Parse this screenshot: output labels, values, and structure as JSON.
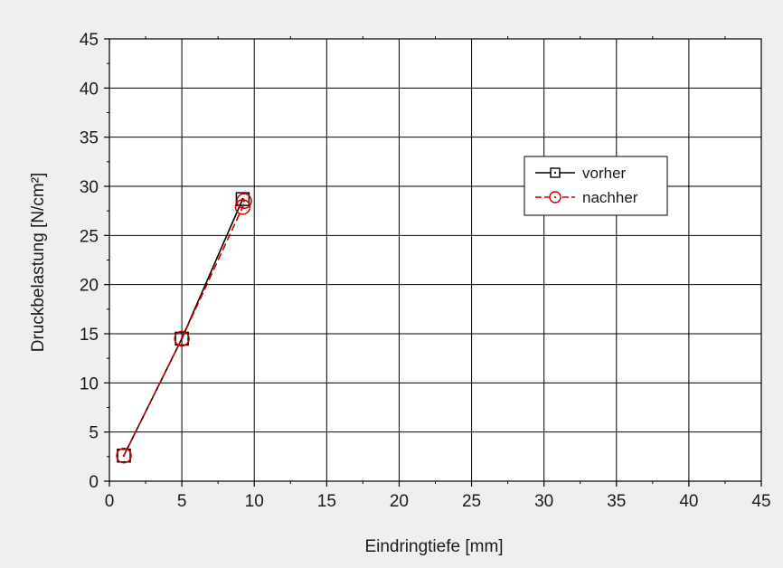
{
  "chart_data": {
    "type": "line",
    "title": "",
    "xlabel": "Eindringtiefe [mm]",
    "ylabel": "Druckbelastung [N/cm²]",
    "xlim": [
      0,
      45
    ],
    "ylim": [
      0,
      45
    ],
    "xticks": [
      0,
      5,
      10,
      15,
      20,
      25,
      30,
      35,
      40,
      45
    ],
    "yticks": [
      0,
      5,
      10,
      15,
      20,
      25,
      30,
      35,
      40,
      45
    ],
    "grid": true,
    "legend_position": "right",
    "series": [
      {
        "name": "vorher",
        "color": "#000000",
        "marker": "square-dot",
        "line": "solid",
        "points": [
          {
            "x": 1.0,
            "y": 2.6
          },
          {
            "x": 5.0,
            "y": 14.5
          },
          {
            "x": 9.2,
            "y": 28.7
          }
        ]
      },
      {
        "name": "nachher",
        "color": "#cc0000",
        "marker": "circle-dot",
        "line": "dashed",
        "points": [
          {
            "x": 1.0,
            "y": 2.6
          },
          {
            "x": 5.0,
            "y": 14.5
          },
          {
            "x": 9.2,
            "y": 27.9
          },
          {
            "x": 9.3,
            "y": 28.5
          }
        ]
      }
    ]
  },
  "colors": {
    "background": "#efefef",
    "plot_area": "#ffffff",
    "grid": "#000000",
    "axis": "#000000"
  }
}
